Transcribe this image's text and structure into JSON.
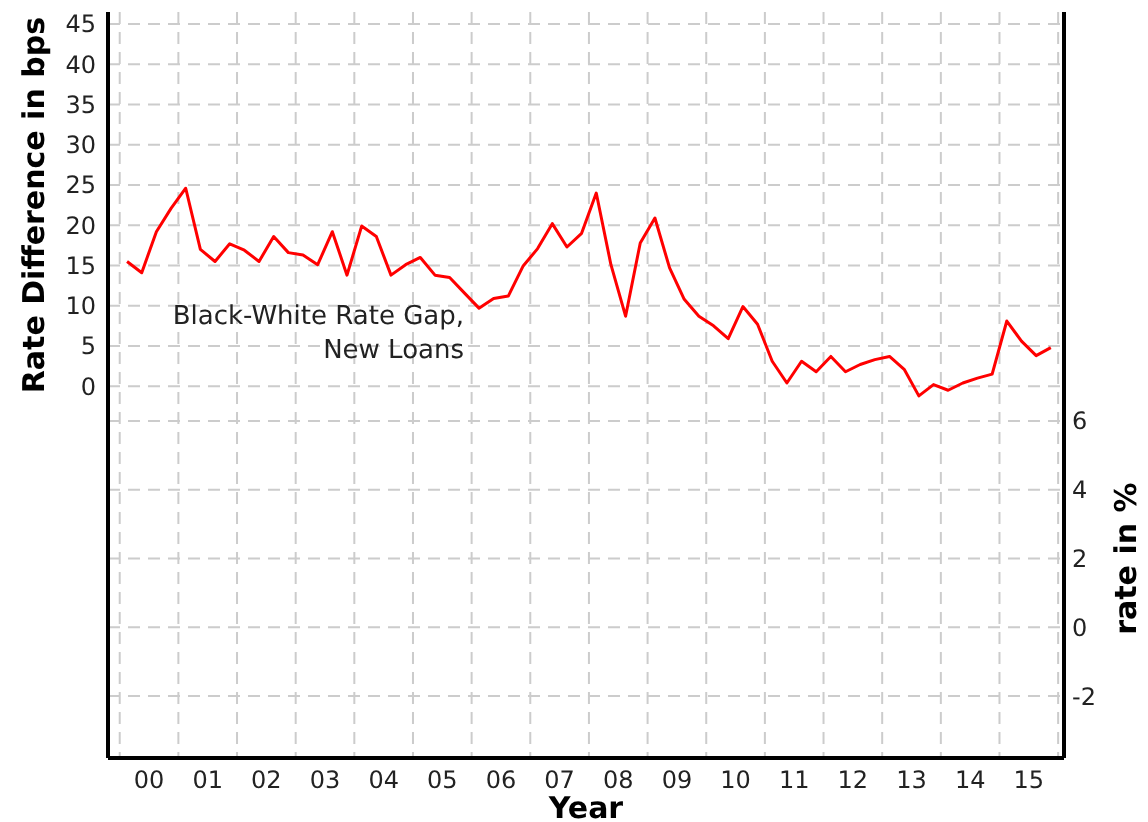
{
  "chart_data": {
    "type": "line",
    "xlabel": "Year",
    "ylabel": "Rate Difference in bps",
    "y2label": "rate in %",
    "x": [
      -0.375,
      -0.125,
      0.125,
      0.375,
      0.625,
      0.875,
      1.125,
      1.375,
      1.625,
      1.875,
      2.125,
      2.375,
      2.625,
      2.875,
      3.125,
      3.375,
      3.625,
      3.875,
      4.125,
      4.375,
      4.625,
      4.875,
      5.125,
      5.375,
      5.625,
      5.875,
      6.125,
      6.375,
      6.625,
      6.875,
      7.125,
      7.375,
      7.625,
      7.875,
      8.125,
      8.375,
      8.625,
      8.875,
      9.125,
      9.375,
      9.625,
      9.875,
      10.125,
      10.375,
      10.625,
      10.875,
      11.125,
      11.375,
      11.625,
      11.875,
      12.125,
      12.375,
      12.625,
      12.875,
      13.125,
      13.375,
      13.625,
      13.875,
      14.125,
      14.375,
      14.625,
      14.875,
      15.125,
      15.375
    ],
    "series": [
      {
        "color": "#ff0000",
        "values": [
          15.5,
          14.1,
          19.2,
          22.1,
          24.6,
          17.0,
          15.5,
          17.7,
          16.9,
          15.5,
          18.6,
          16.6,
          16.3,
          15.1,
          19.2,
          13.8,
          19.9,
          18.6,
          13.8,
          15.1,
          16.0,
          13.8,
          13.5,
          11.6,
          9.7,
          10.9,
          11.2,
          14.9,
          17.1,
          20.2,
          17.3,
          19.0,
          24.0,
          15.1,
          8.7,
          17.8,
          20.9,
          14.7,
          10.8,
          8.7,
          7.5,
          5.9,
          9.9,
          7.7,
          3.1,
          0.4,
          3.1,
          1.8,
          3.7,
          1.8,
          2.7,
          3.3,
          3.7,
          2.1,
          -1.2,
          0.2,
          -0.5,
          0.4,
          1.0,
          1.5,
          8.1,
          5.6,
          3.8,
          4.8
        ]
      }
    ],
    "annotations": [
      "Black-White Rate Gap,\nNew Loans"
    ],
    "xlim": [
      -0.7,
      15.6
    ],
    "xticks": [
      {
        "value": -0.5,
        "label": null
      },
      {
        "value": 0,
        "label": "00"
      },
      {
        "value": 0.5,
        "label": null
      },
      {
        "value": 1,
        "label": "01"
      },
      {
        "value": 1.5,
        "label": null
      },
      {
        "value": 2,
        "label": "02"
      },
      {
        "value": 2.5,
        "label": null
      },
      {
        "value": 3,
        "label": "03"
      },
      {
        "value": 3.5,
        "label": null
      },
      {
        "value": 4,
        "label": "04"
      },
      {
        "value": 4.5,
        "label": null
      },
      {
        "value": 5,
        "label": "05"
      },
      {
        "value": 5.5,
        "label": null
      },
      {
        "value": 6,
        "label": "06"
      },
      {
        "value": 6.5,
        "label": null
      },
      {
        "value": 7,
        "label": "07"
      },
      {
        "value": 7.5,
        "label": null
      },
      {
        "value": 8,
        "label": "08"
      },
      {
        "value": 8.5,
        "label": null
      },
      {
        "value": 9,
        "label": "09"
      },
      {
        "value": 9.5,
        "label": null
      },
      {
        "value": 10,
        "label": "10"
      },
      {
        "value": 10.5,
        "label": null
      },
      {
        "value": 11,
        "label": "11"
      },
      {
        "value": 11.5,
        "label": null
      },
      {
        "value": 12,
        "label": "12"
      },
      {
        "value": 12.5,
        "label": null
      },
      {
        "value": 13,
        "label": "13"
      },
      {
        "value": 13.5,
        "label": null
      },
      {
        "value": 14,
        "label": "14"
      },
      {
        "value": 14.5,
        "label": null
      },
      {
        "value": 15,
        "label": "15"
      },
      {
        "value": 15.5,
        "label": null
      }
    ],
    "ylim": [
      -46.2,
      46.5
    ],
    "yticks": [
      0,
      5,
      10,
      15,
      20,
      25,
      30,
      35,
      40,
      45
    ],
    "y2lim": [
      -3.8,
      17.9
    ],
    "y2ticks": [
      -2,
      0,
      2,
      4,
      6
    ],
    "grid": true,
    "line_style": "solid",
    "marker": "none"
  }
}
